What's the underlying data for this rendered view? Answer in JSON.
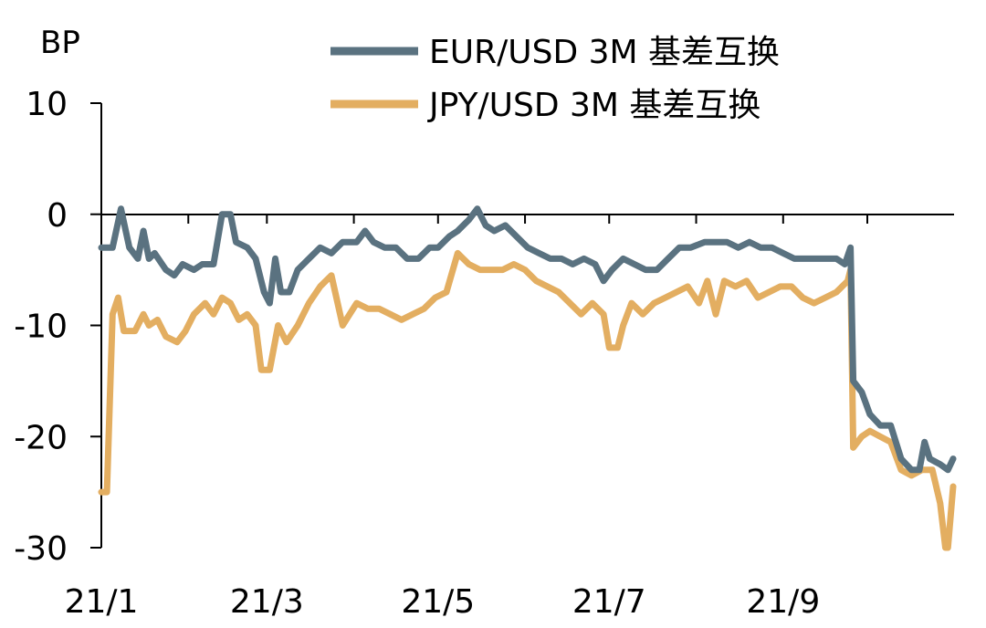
{
  "chart_data": {
    "type": "line",
    "ylabel": "BP",
    "ylim": [
      -30,
      10
    ],
    "yticks": [
      10,
      0,
      -10,
      -20,
      -30
    ],
    "x_tick_labels": [
      "21/1",
      "21/3",
      "21/5",
      "21/7",
      "21/9"
    ],
    "x_domain": [
      "2021-01",
      "2021-10"
    ],
    "legend_position": "top-center",
    "grid": false,
    "series": [
      {
        "name": "EUR/USD 3M 基差互换",
        "color": "#5A7280",
        "points": [
          [
            "2021-01-01",
            -3
          ],
          [
            "2021-01-05",
            -3
          ],
          [
            "2021-01-08",
            0.5
          ],
          [
            "2021-01-11",
            -3
          ],
          [
            "2021-01-14",
            -4
          ],
          [
            "2021-01-16",
            -1.5
          ],
          [
            "2021-01-18",
            -4
          ],
          [
            "2021-01-20",
            -3.5
          ],
          [
            "2021-01-24",
            -5
          ],
          [
            "2021-01-27",
            -5.5
          ],
          [
            "2021-01-30",
            -4.5
          ],
          [
            "2021-02-03",
            -5
          ],
          [
            "2021-02-06",
            -4.5
          ],
          [
            "2021-02-10",
            -4.5
          ],
          [
            "2021-02-13",
            0
          ],
          [
            "2021-02-16",
            0
          ],
          [
            "2021-02-18",
            -2.5
          ],
          [
            "2021-02-22",
            -3
          ],
          [
            "2021-02-25",
            -4
          ],
          [
            "2021-02-28",
            -7
          ],
          [
            "2021-03-02",
            -8
          ],
          [
            "2021-03-04",
            -4
          ],
          [
            "2021-03-06",
            -7
          ],
          [
            "2021-03-09",
            -7
          ],
          [
            "2021-03-12",
            -5
          ],
          [
            "2021-03-16",
            -4
          ],
          [
            "2021-03-20",
            -3
          ],
          [
            "2021-03-24",
            -3.5
          ],
          [
            "2021-03-28",
            -2.5
          ],
          [
            "2021-04-02",
            -2.5
          ],
          [
            "2021-04-05",
            -1.5
          ],
          [
            "2021-04-08",
            -2.5
          ],
          [
            "2021-04-12",
            -3
          ],
          [
            "2021-04-16",
            -3
          ],
          [
            "2021-04-20",
            -4
          ],
          [
            "2021-04-24",
            -4
          ],
          [
            "2021-04-28",
            -3
          ],
          [
            "2021-05-01",
            -3
          ],
          [
            "2021-05-05",
            -2
          ],
          [
            "2021-05-08",
            -1.5
          ],
          [
            "2021-05-12",
            -0.5
          ],
          [
            "2021-05-15",
            0.5
          ],
          [
            "2021-05-18",
            -1
          ],
          [
            "2021-05-21",
            -1.5
          ],
          [
            "2021-05-25",
            -1
          ],
          [
            "2021-05-29",
            -2
          ],
          [
            "2021-06-02",
            -3
          ],
          [
            "2021-06-06",
            -3.5
          ],
          [
            "2021-06-10",
            -4
          ],
          [
            "2021-06-14",
            -4
          ],
          [
            "2021-06-18",
            -4.5
          ],
          [
            "2021-06-22",
            -4
          ],
          [
            "2021-06-26",
            -4.5
          ],
          [
            "2021-06-29",
            -6
          ],
          [
            "2021-07-02",
            -5
          ],
          [
            "2021-07-06",
            -4
          ],
          [
            "2021-07-10",
            -4.5
          ],
          [
            "2021-07-14",
            -5
          ],
          [
            "2021-07-18",
            -5
          ],
          [
            "2021-07-22",
            -4
          ],
          [
            "2021-07-26",
            -3
          ],
          [
            "2021-07-30",
            -3
          ],
          [
            "2021-08-04",
            -2.5
          ],
          [
            "2021-08-08",
            -2.5
          ],
          [
            "2021-08-12",
            -2.5
          ],
          [
            "2021-08-16",
            -3
          ],
          [
            "2021-08-20",
            -2.5
          ],
          [
            "2021-08-24",
            -3
          ],
          [
            "2021-08-28",
            -3
          ],
          [
            "2021-09-01",
            -3.5
          ],
          [
            "2021-09-05",
            -4
          ],
          [
            "2021-09-09",
            -4
          ],
          [
            "2021-09-13",
            -4
          ],
          [
            "2021-09-17",
            -4
          ],
          [
            "2021-09-20",
            -4
          ],
          [
            "2021-09-23",
            -4.5
          ],
          [
            "2021-09-25",
            -3
          ],
          [
            "2021-09-26",
            -15
          ],
          [
            "2021-09-29",
            -16
          ],
          [
            "2021-10-02",
            -18
          ],
          [
            "2021-10-06",
            -19
          ],
          [
            "2021-10-10",
            -19
          ],
          [
            "2021-10-14",
            -22
          ],
          [
            "2021-10-18",
            -23
          ],
          [
            "2021-10-21",
            -23
          ],
          [
            "2021-10-23",
            -20.5
          ],
          [
            "2021-10-25",
            -22
          ],
          [
            "2021-10-29",
            -22.5
          ],
          [
            "2021-11-01",
            -23
          ],
          [
            "2021-11-03",
            -22
          ]
        ]
      },
      {
        "name": "JPY/USD 3M 基差互换",
        "color": "#E3AE61",
        "points": [
          [
            "2021-01-01",
            -25
          ],
          [
            "2021-01-03",
            -25
          ],
          [
            "2021-01-05",
            -9
          ],
          [
            "2021-01-07",
            -7.5
          ],
          [
            "2021-01-09",
            -10.5
          ],
          [
            "2021-01-13",
            -10.5
          ],
          [
            "2021-01-16",
            -9
          ],
          [
            "2021-01-18",
            -10
          ],
          [
            "2021-01-21",
            -9.5
          ],
          [
            "2021-01-24",
            -11
          ],
          [
            "2021-01-28",
            -11.5
          ],
          [
            "2021-01-31",
            -10.5
          ],
          [
            "2021-02-03",
            -9
          ],
          [
            "2021-02-07",
            -8
          ],
          [
            "2021-02-10",
            -9
          ],
          [
            "2021-02-13",
            -7.5
          ],
          [
            "2021-02-16",
            -8
          ],
          [
            "2021-02-19",
            -9.5
          ],
          [
            "2021-02-22",
            -9
          ],
          [
            "2021-02-25",
            -10
          ],
          [
            "2021-02-27",
            -14
          ],
          [
            "2021-03-02",
            -14
          ],
          [
            "2021-03-05",
            -10
          ],
          [
            "2021-03-08",
            -11.5
          ],
          [
            "2021-03-12",
            -10
          ],
          [
            "2021-03-16",
            -8
          ],
          [
            "2021-03-20",
            -6.5
          ],
          [
            "2021-03-24",
            -5.5
          ],
          [
            "2021-03-28",
            -10
          ],
          [
            "2021-04-02",
            -8
          ],
          [
            "2021-04-06",
            -8.5
          ],
          [
            "2021-04-10",
            -8.5
          ],
          [
            "2021-04-14",
            -9
          ],
          [
            "2021-04-18",
            -9.5
          ],
          [
            "2021-04-22",
            -9
          ],
          [
            "2021-04-26",
            -8.5
          ],
          [
            "2021-04-30",
            -7.5
          ],
          [
            "2021-05-04",
            -7
          ],
          [
            "2021-05-08",
            -3.5
          ],
          [
            "2021-05-12",
            -4.5
          ],
          [
            "2021-05-16",
            -5
          ],
          [
            "2021-05-20",
            -5
          ],
          [
            "2021-05-24",
            -5
          ],
          [
            "2021-05-28",
            -4.5
          ],
          [
            "2021-06-01",
            -5
          ],
          [
            "2021-06-05",
            -6
          ],
          [
            "2021-06-09",
            -6.5
          ],
          [
            "2021-06-13",
            -7
          ],
          [
            "2021-06-17",
            -8
          ],
          [
            "2021-06-21",
            -9
          ],
          [
            "2021-06-25",
            -8
          ],
          [
            "2021-06-29",
            -9
          ],
          [
            "2021-07-01",
            -12
          ],
          [
            "2021-07-04",
            -12
          ],
          [
            "2021-07-06",
            -10
          ],
          [
            "2021-07-09",
            -8
          ],
          [
            "2021-07-13",
            -9
          ],
          [
            "2021-07-17",
            -8
          ],
          [
            "2021-07-21",
            -7.5
          ],
          [
            "2021-07-25",
            -7
          ],
          [
            "2021-07-29",
            -6.5
          ],
          [
            "2021-08-02",
            -8
          ],
          [
            "2021-08-05",
            -6
          ],
          [
            "2021-08-08",
            -9
          ],
          [
            "2021-08-11",
            -6
          ],
          [
            "2021-08-15",
            -6.5
          ],
          [
            "2021-08-19",
            -6
          ],
          [
            "2021-08-23",
            -7.5
          ],
          [
            "2021-08-27",
            -7
          ],
          [
            "2021-08-31",
            -6.5
          ],
          [
            "2021-09-04",
            -6.5
          ],
          [
            "2021-09-08",
            -7.5
          ],
          [
            "2021-09-12",
            -8
          ],
          [
            "2021-09-16",
            -7.5
          ],
          [
            "2021-09-20",
            -7
          ],
          [
            "2021-09-24",
            -6
          ],
          [
            "2021-09-25",
            -5
          ],
          [
            "2021-09-26",
            -21
          ],
          [
            "2021-09-29",
            -20
          ],
          [
            "2021-10-02",
            -19.5
          ],
          [
            "2021-10-06",
            -20
          ],
          [
            "2021-10-10",
            -20.5
          ],
          [
            "2021-10-14",
            -23
          ],
          [
            "2021-10-18",
            -23.5
          ],
          [
            "2021-10-22",
            -23
          ],
          [
            "2021-10-26",
            -23
          ],
          [
            "2021-10-29",
            -26
          ],
          [
            "2021-10-31",
            -30
          ],
          [
            "2021-11-01",
            -30
          ],
          [
            "2021-11-03",
            -24.5
          ]
        ]
      }
    ]
  }
}
